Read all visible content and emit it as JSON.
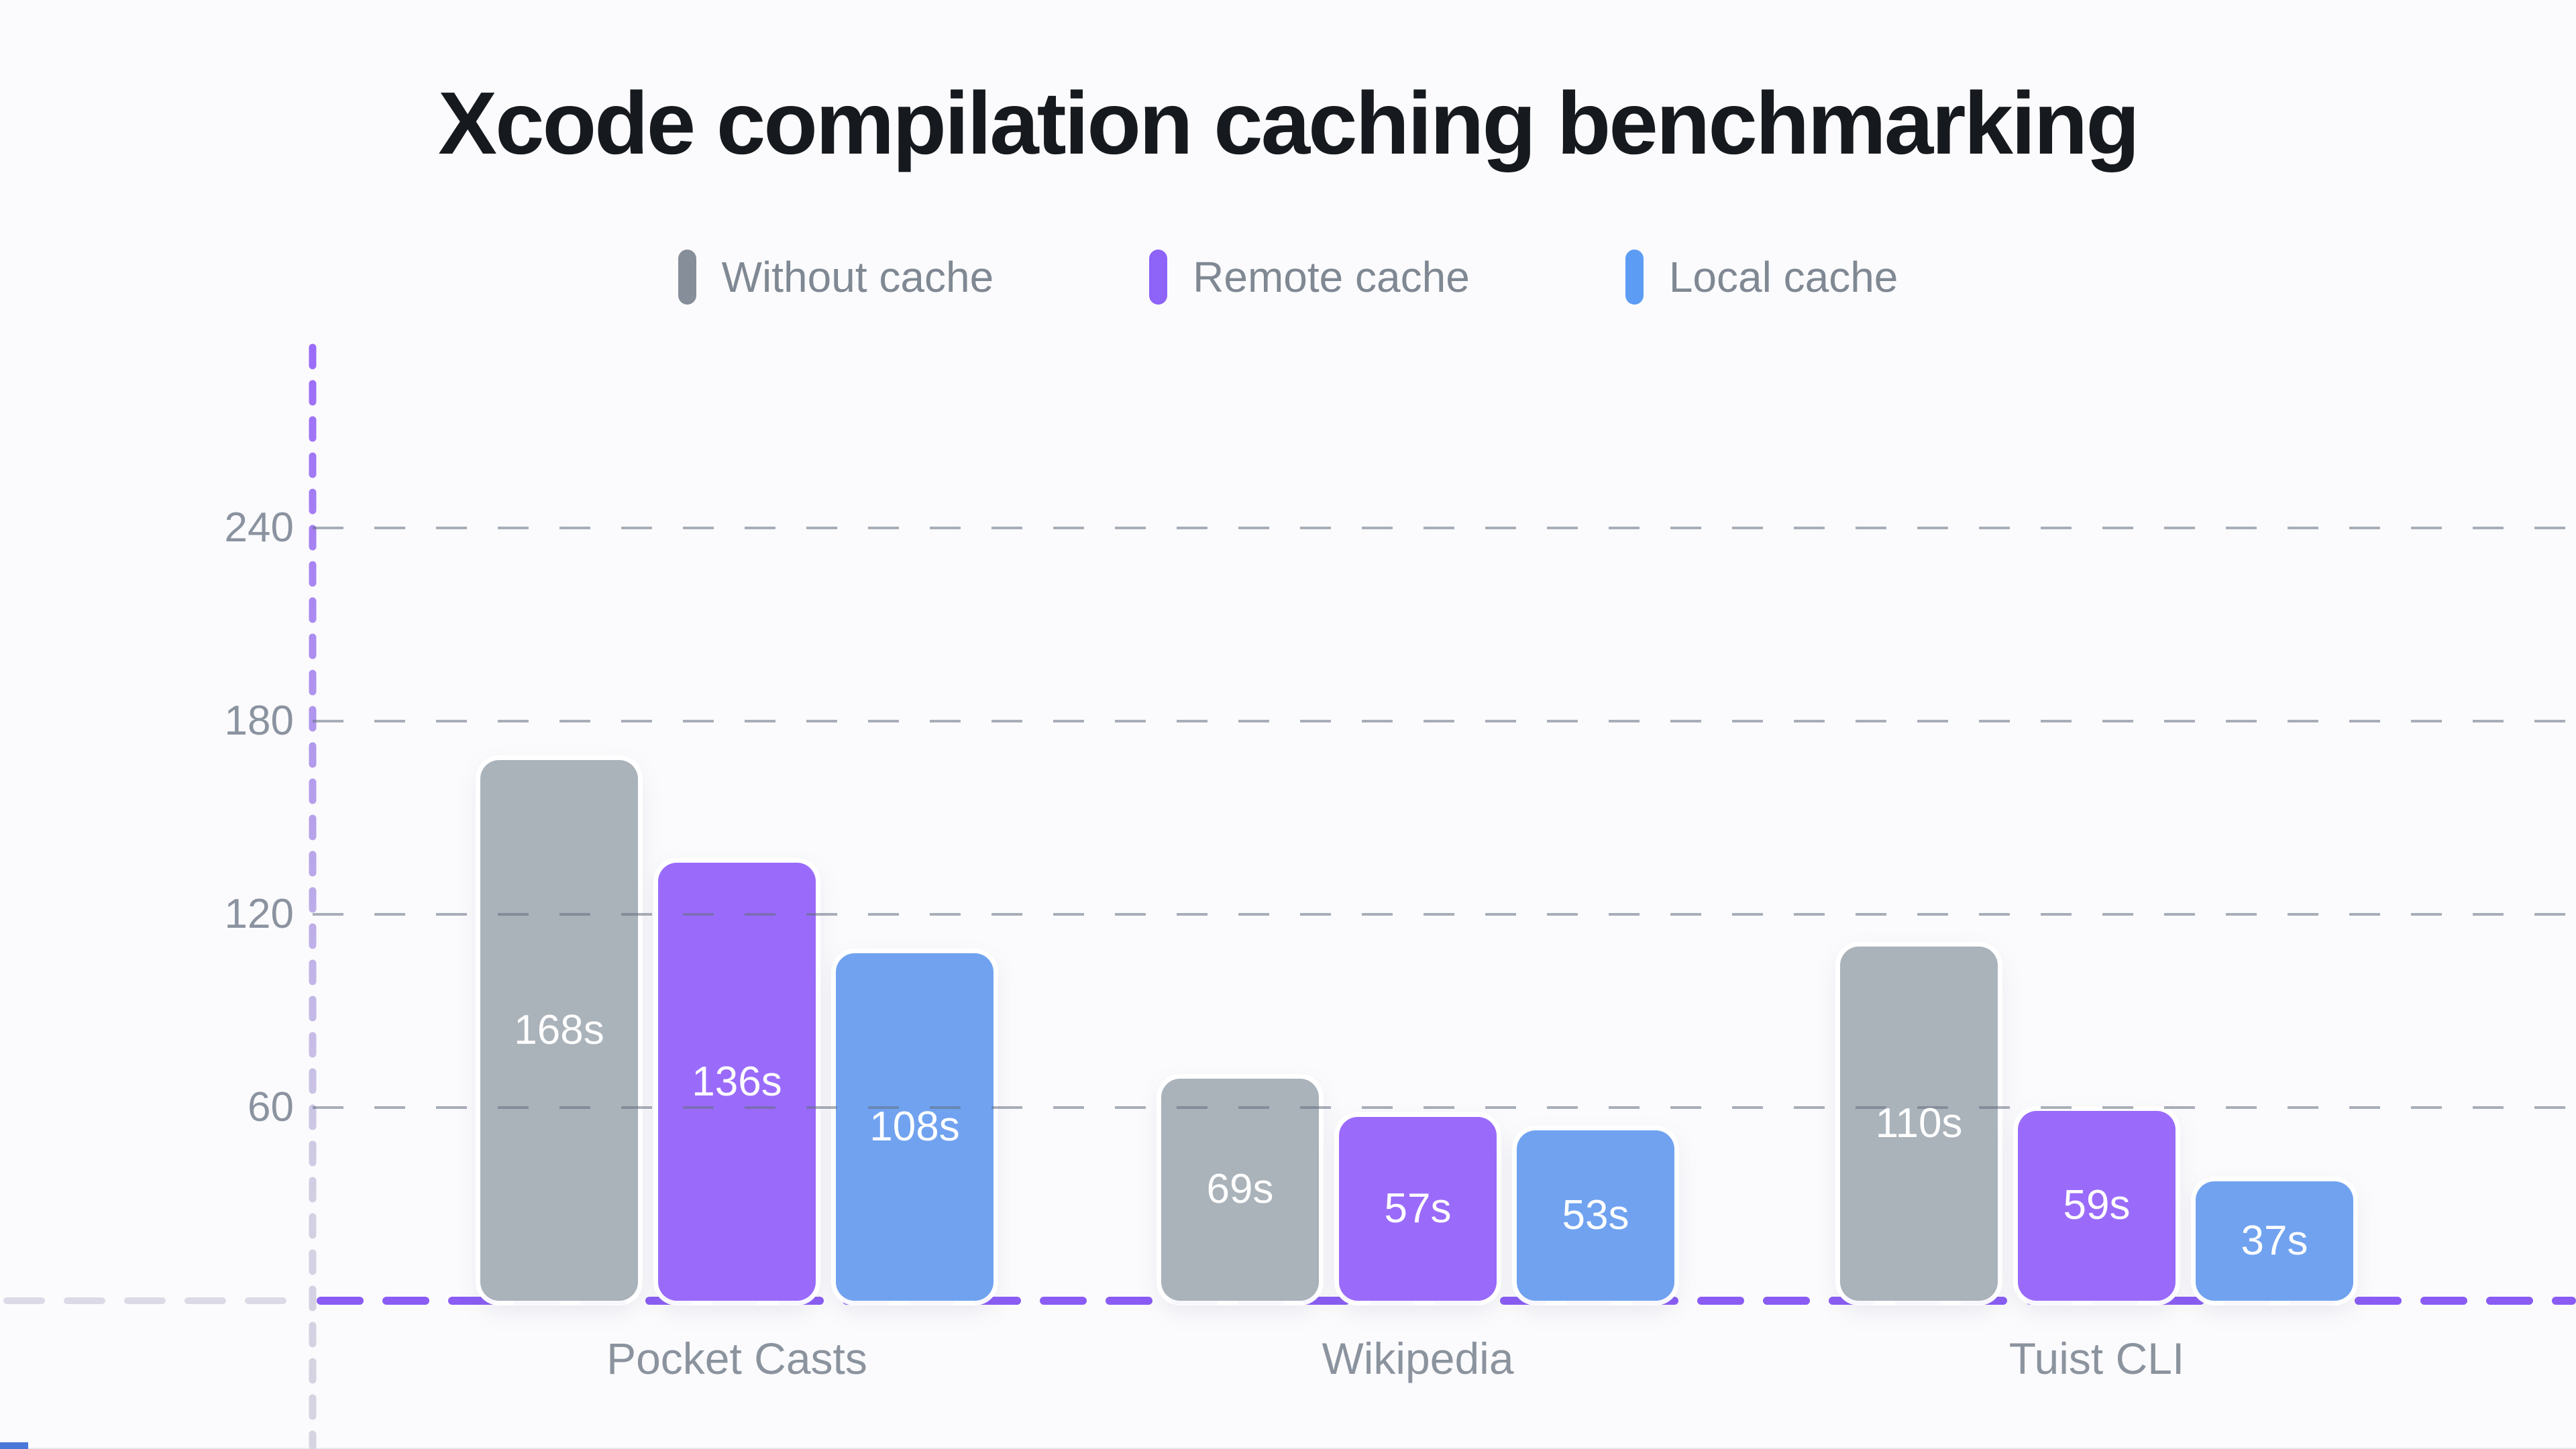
{
  "page": {
    "background": "#fbfbfd"
  },
  "chart_data": {
    "type": "bar",
    "title": "Xcode compilation caching benchmarking",
    "unit": "s",
    "categories": [
      "Pocket Casts",
      "Wikipedia",
      "Tuist CLI"
    ],
    "series": [
      {
        "name": "Without cache",
        "bar_color": "#aab2ba",
        "legend_color": "#868e9a",
        "values": [
          168,
          69,
          110
        ]
      },
      {
        "name": "Remote cache",
        "bar_color": "#9a6bfa",
        "legend_color": "#8d63f8",
        "values": [
          136,
          57,
          59
        ]
      },
      {
        "name": "Local cache",
        "bar_color": "#70a2f0",
        "legend_color": "#5d9cf5",
        "values": [
          108,
          53,
          37
        ]
      }
    ],
    "y_ticks": [
      60,
      120,
      180,
      240
    ],
    "ylim": [
      0,
      296
    ],
    "grid": "horizontal dashed gridlines at each y tick",
    "legend_position": "top center",
    "bar_value_labels": [
      [
        "168s",
        "69s",
        "110s"
      ],
      [
        "136s",
        "57s",
        "59s"
      ],
      [
        "108s",
        "53s",
        "37s"
      ]
    ]
  },
  "styles": {
    "title_color": "#16191e",
    "legend_text_color": "#7f8893",
    "tick_text_color": "#8b93a0",
    "category_text_color": "#8b939e",
    "bar_label_color": "#ffffff",
    "grid_color": "#6e7a8c",
    "y_axis_dash_top_color": "#9b6bf8",
    "y_axis_dash_bottom_color": "#d6d4e2",
    "x_axis_dash_color": "#8a5cf4",
    "x_axis_dash_left_of_origin_color": "#dbdae6",
    "bottom_strip_color": "#4a78d8"
  }
}
